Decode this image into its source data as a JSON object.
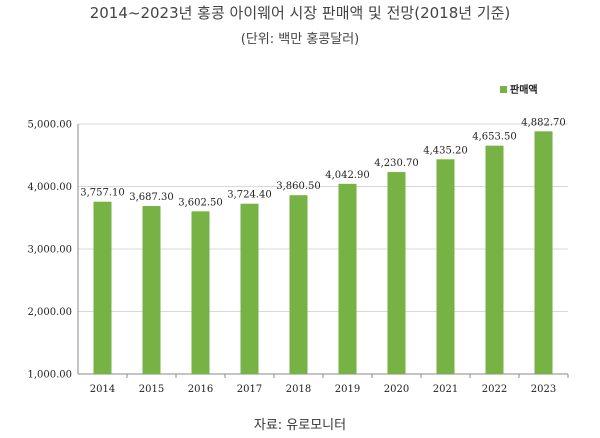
{
  "header": {
    "title": "2014~2023년 홍콩 아이웨어 시장 판매액 및 전망(2018년 기준)",
    "subtitle": "(단위: 백만 홍콩달러)"
  },
  "footer": {
    "source": "자료: 유로모니터"
  },
  "colors": {
    "bar": "#77b244",
    "grid": "#d9d9d9",
    "axis": "#888888"
  },
  "chart_data": {
    "type": "bar",
    "categories": [
      "2014",
      "2015",
      "2016",
      "2017",
      "2018",
      "2019",
      "2020",
      "2021",
      "2022",
      "2023"
    ],
    "series": [
      {
        "name": "판매액",
        "values": [
          3757.1,
          3687.3,
          3602.5,
          3724.4,
          3860.5,
          4042.9,
          4230.7,
          4435.2,
          4653.5,
          4882.7
        ],
        "labels": [
          "3,757.10",
          "3,687.30",
          "3,602.50",
          "3,724.40",
          "3,860.50",
          "4,042.90",
          "4,230.70",
          "4,435.20",
          "4,653.50",
          "4,882.70"
        ]
      }
    ],
    "ylim": [
      1000,
      5000
    ],
    "yticks": [
      1000,
      2000,
      3000,
      4000,
      5000
    ],
    "ytick_labels": [
      "1,000.00",
      "2,000.00",
      "3,000.00",
      "4,000.00",
      "5,000.00"
    ],
    "grid": true,
    "legend_position": "top-right"
  }
}
